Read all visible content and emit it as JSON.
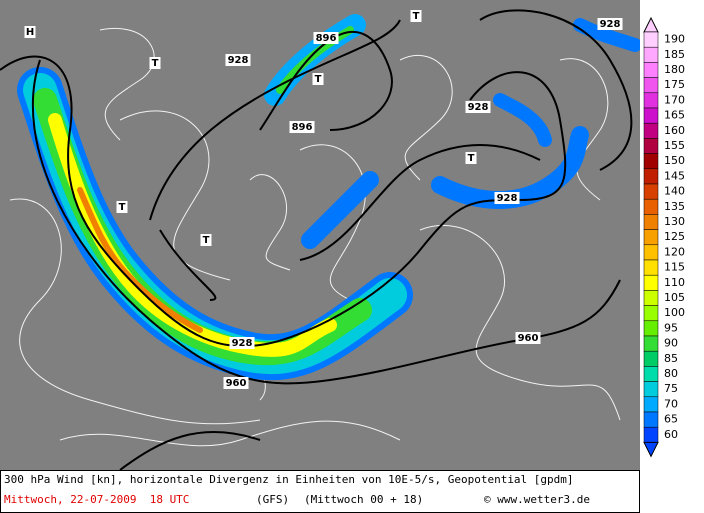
{
  "map": {
    "labels": [
      "928",
      "928",
      "928",
      "928",
      "928",
      "896",
      "896",
      "960",
      "960",
      "T",
      "T",
      "T",
      "T",
      "T",
      "T",
      "H"
    ],
    "colorbar": {
      "labels": [
        190,
        185,
        180,
        175,
        170,
        165,
        160,
        155,
        150,
        145,
        140,
        135,
        130,
        125,
        120,
        115,
        110,
        105,
        100,
        95,
        90,
        85,
        80,
        75,
        70,
        65,
        60
      ],
      "colors": [
        "#ffd0ff",
        "#ffa8ff",
        "#ff80ff",
        "#f055f0",
        "#e030e0",
        "#cc10cc",
        "#c00080",
        "#b00040",
        "#a00000",
        "#c02000",
        "#d84000",
        "#e86000",
        "#f08000",
        "#f8a000",
        "#ffc000",
        "#ffe000",
        "#ffff00",
        "#ccff00",
        "#99ff00",
        "#66ee00",
        "#33dd33",
        "#00cc66",
        "#00ddaa",
        "#00ccdd",
        "#00aaff",
        "#0077ff",
        "#0044ff"
      ]
    }
  },
  "footer": {
    "description": "300 hPa Wind [kn], horizontale Divergenz in Einheiten von 10E-5/s, Geopotential [gpdm]",
    "date": "Mittwoch, 22-07-2009  18 UTC",
    "model": "(GFS)",
    "run": "(Mittwoch 00 + 18)",
    "copyright": "© www.wetter3.de"
  }
}
